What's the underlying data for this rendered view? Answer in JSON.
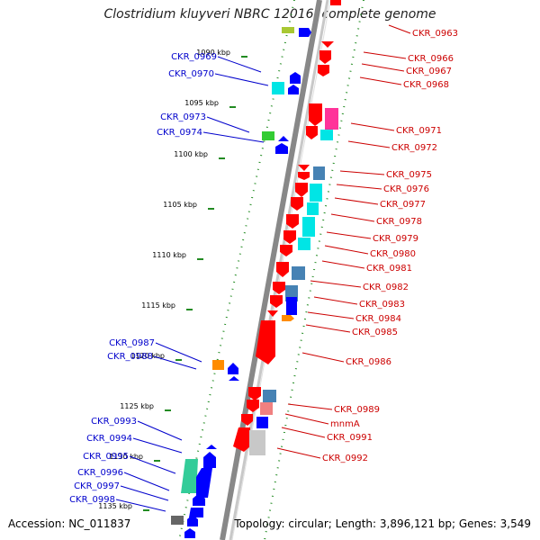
{
  "title": "Clostridium kluyveri NBRC 12016, complete genome",
  "footer": {
    "accession": "Accession: NC_011837",
    "topology": "Topology: circular; Length: 3,896,121 bp; Genes: 3,549"
  },
  "ticks": [
    "1090 kbp",
    "1095 kbp",
    "1100 kbp",
    "1105 kbp",
    "1110 kbp",
    "1115 kbp",
    "1120 kbp",
    "1125 kbp",
    "1130 kbp",
    "1135 kbp"
  ],
  "left_labels": [
    "CKR_0969",
    "CKR_0970",
    "CKR_0973",
    "CKR_0974",
    "CKR_0987",
    "CKR_0988",
    "CKR_0993",
    "CKR_0994",
    "CKR_0995",
    "CKR_0996",
    "CKR_0997",
    "CKR_0998"
  ],
  "right_labels": [
    "CKR_0963",
    "CKR_0966",
    "CKR_0967",
    "CKR_0968",
    "CKR_0971",
    "CKR_0972",
    "CKR_0975",
    "CKR_0976",
    "CKR_0977",
    "CKR_0978",
    "CKR_0979",
    "CKR_0980",
    "CKR_0981",
    "CKR_0982",
    "CKR_0983",
    "CKR_0984",
    "CKR_0985",
    "CKR_0986",
    "CKR_0989",
    "mnmA",
    "CKR_0991",
    "CKR_0992"
  ],
  "colors": {
    "forward_gene": "#ff0000",
    "reverse_gene": "#0000ff",
    "left_label": "#0000cc",
    "right_label": "#cc0000",
    "tick_mark": "#228b22",
    "backbone": "#999999"
  }
}
